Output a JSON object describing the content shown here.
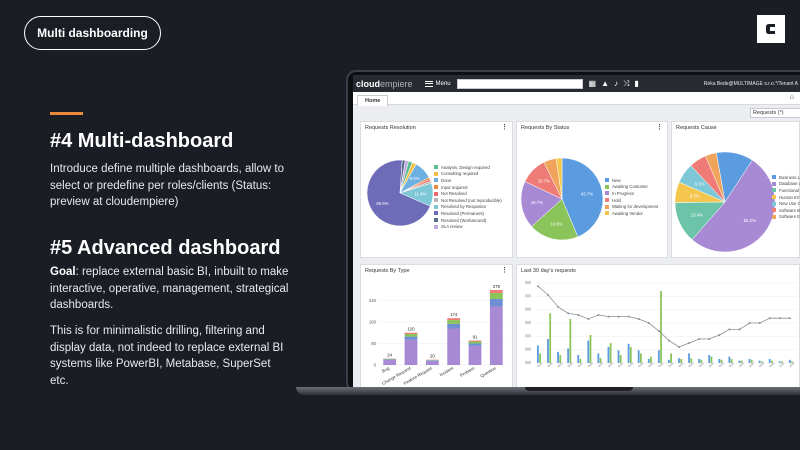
{
  "slide": {
    "pill_label": "Multi dashboarding",
    "heading1": "#4 Multi-dashboard",
    "body1": "Introduce define multiple dashboards, allow to select or predefine per roles/clients (Status: preview at cloudempiere)",
    "heading2": "#5 Advanced dashboard",
    "goal_label": "Goal",
    "goal_text": ": replace external basic BI, inbuilt to make interactive, operative, management, strategical dashboards.",
    "body3": "This is for minimalistic drilling, filtering and display data, not indeed to replace external BI systems like PowerBI, Metabase, SuperSet etc.",
    "accent_color": "#e8893c"
  },
  "app": {
    "logo_main": "cloud",
    "logo_sub": "empiere",
    "menu_label": "Menu",
    "icons": [
      "calendar-icon",
      "warning-icon",
      "bell-icon",
      "shuffle-icon",
      "document-icon"
    ],
    "user_text": "Réka Bede@MULTIMAGE s.r.o.*/Tenant A",
    "tab_home": "Home",
    "filter_value": "Requests  (*)"
  },
  "chart_data": [
    {
      "type": "pie",
      "title": "Requests Resolution",
      "legend": [
        "Analysis, Design required",
        "Consulting required",
        "Done",
        "Input required",
        "Not Resolved",
        "Not Resolved (not reproducible)",
        "Resolved by Respositor",
        "Resolved (Permanent)",
        "Resolved (Workaround)",
        "SLA review"
      ],
      "colors": [
        "#5dbb8f",
        "#f2c34b",
        "#6bb0e0",
        "#f08a3c",
        "#ee6a6a",
        "#b8b8b8",
        "#7ec7d6",
        "#6e6bb8",
        "#5a6e8a",
        "#c0a9e0"
      ],
      "values": [
        2.0,
        2.0,
        9.0,
        1.0,
        1.0,
        1.0,
        11.4,
        69.5,
        1.5,
        1.6
      ],
      "labels": [
        "",
        "",
        "9.0%",
        "",
        "",
        "",
        "11.4%",
        "69.5%",
        "",
        ""
      ]
    },
    {
      "type": "pie",
      "title": "Requests By Status",
      "legend": [
        "New",
        "Awaiting Customer",
        "In Progress",
        "Hold",
        "Waiting for development",
        "Awaiting Vendor"
      ],
      "colors": [
        "#5b9be0",
        "#8bc45a",
        "#a88ad4",
        "#ee7b76",
        "#f0a35a",
        "#f4c64e"
      ],
      "values": [
        43.7,
        19.6,
        18.7,
        10.7,
        5.0,
        2.3
      ],
      "labels": [
        "43.7%",
        "19.6%",
        "18.7%",
        "10.7%",
        "",
        ""
      ]
    },
    {
      "type": "pie",
      "title": "Requests Cause",
      "legend": [
        "Business Li",
        "Database o",
        "Functional",
        "Human Err",
        "New Use C",
        "Software B",
        "Software E"
      ],
      "colors": [
        "#5b9be0",
        "#a88ad4",
        "#6cc4a8",
        "#f4c64e",
        "#7ec7d6",
        "#ee7b76",
        "#f0a35a"
      ],
      "values": [
        12,
        52.2,
        13.4,
        6.7,
        6.5,
        5.6,
        3.6
      ],
      "labels": [
        "",
        "52.2%",
        "13.4%",
        "6.7%",
        "6.5%",
        "",
        ""
      ]
    },
    {
      "type": "bar",
      "title": "Requests By Type",
      "categories": [
        "Bug",
        "Change Request",
        "Feature Request",
        "Incident",
        "Problem",
        "Question"
      ],
      "values": [
        24,
        120,
        20,
        174,
        91,
        279
      ],
      "y_ticks": [
        0,
        80,
        160,
        240
      ],
      "ylim": [
        0,
        290
      ],
      "segment_colors": [
        "#a88ad4",
        "#6e8fd4",
        "#8bc45a",
        "#ee7b76"
      ],
      "segment_shares": [
        0.78,
        0.1,
        0.08,
        0.04
      ]
    },
    {
      "type": "bar",
      "title": "Last 30 day's requests",
      "y_ticks": [
        "",
        "",
        "",
        "",
        "",
        "",
        ""
      ]
    }
  ]
}
